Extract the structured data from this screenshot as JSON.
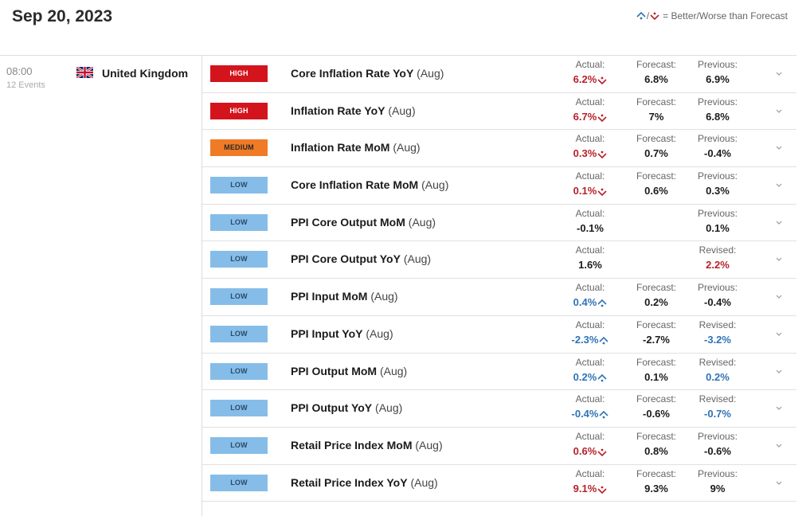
{
  "header": {
    "date": "Sep 20, 2023",
    "legend_sep": "/",
    "legend_text": "= Better/Worse than Forecast",
    "legend_better_icon": "better-arrow-icon",
    "legend_worse_icon": "worse-arrow-icon"
  },
  "colors": {
    "better": "#2f73b6",
    "worse": "#b8212a",
    "high": "#d4141d",
    "medium": "#f07b26",
    "low": "#86bde8"
  },
  "group": {
    "time": "08:00",
    "events_count": "12 Events",
    "country": "United Kingdom",
    "flag_icon": "uk-flag-icon"
  },
  "events": [
    {
      "importance": "HIGH",
      "name": "Core Inflation Rate YoY",
      "period": "(Aug)",
      "actual_label": "Actual:",
      "actual": "6.2%",
      "actual_status": "worse",
      "forecast_label": "Forecast:",
      "forecast": "6.8%",
      "previous_label": "Previous:",
      "previous": "6.9%",
      "previous_status": "neutral"
    },
    {
      "importance": "HIGH",
      "name": "Inflation Rate YoY",
      "period": "(Aug)",
      "actual_label": "Actual:",
      "actual": "6.7%",
      "actual_status": "worse",
      "forecast_label": "Forecast:",
      "forecast": "7%",
      "previous_label": "Previous:",
      "previous": "6.8%",
      "previous_status": "neutral"
    },
    {
      "importance": "MEDIUM",
      "name": "Inflation Rate MoM",
      "period": "(Aug)",
      "actual_label": "Actual:",
      "actual": "0.3%",
      "actual_status": "worse",
      "forecast_label": "Forecast:",
      "forecast": "0.7%",
      "previous_label": "Previous:",
      "previous": "-0.4%",
      "previous_status": "neutral"
    },
    {
      "importance": "LOW",
      "name": "Core Inflation Rate MoM",
      "period": "(Aug)",
      "actual_label": "Actual:",
      "actual": "0.1%",
      "actual_status": "worse",
      "forecast_label": "Forecast:",
      "forecast": "0.6%",
      "previous_label": "Previous:",
      "previous": "0.3%",
      "previous_status": "neutral"
    },
    {
      "importance": "LOW",
      "name": "PPI Core Output MoM",
      "period": "(Aug)",
      "actual_label": "Actual:",
      "actual": "-0.1%",
      "actual_status": "neutral",
      "forecast_label": "",
      "forecast": "",
      "previous_label": "Previous:",
      "previous": "0.1%",
      "previous_status": "neutral"
    },
    {
      "importance": "LOW",
      "name": "PPI Core Output YoY",
      "period": "(Aug)",
      "actual_label": "Actual:",
      "actual": "1.6%",
      "actual_status": "neutral",
      "forecast_label": "",
      "forecast": "",
      "previous_label": "Revised:",
      "previous": "2.2%",
      "previous_status": "worse"
    },
    {
      "importance": "LOW",
      "name": "PPI Input MoM",
      "period": "(Aug)",
      "actual_label": "Actual:",
      "actual": "0.4%",
      "actual_status": "better",
      "forecast_label": "Forecast:",
      "forecast": "0.2%",
      "previous_label": "Previous:",
      "previous": "-0.4%",
      "previous_status": "neutral"
    },
    {
      "importance": "LOW",
      "name": "PPI Input YoY",
      "period": "(Aug)",
      "actual_label": "Actual:",
      "actual": "-2.3%",
      "actual_status": "better",
      "forecast_label": "Forecast:",
      "forecast": "-2.7%",
      "previous_label": "Revised:",
      "previous": "-3.2%",
      "previous_status": "better"
    },
    {
      "importance": "LOW",
      "name": "PPI Output MoM",
      "period": "(Aug)",
      "actual_label": "Actual:",
      "actual": "0.2%",
      "actual_status": "better",
      "forecast_label": "Forecast:",
      "forecast": "0.1%",
      "previous_label": "Revised:",
      "previous": "0.2%",
      "previous_status": "better"
    },
    {
      "importance": "LOW",
      "name": "PPI Output YoY",
      "period": "(Aug)",
      "actual_label": "Actual:",
      "actual": "-0.4%",
      "actual_status": "better",
      "forecast_label": "Forecast:",
      "forecast": "-0.6%",
      "previous_label": "Revised:",
      "previous": "-0.7%",
      "previous_status": "better"
    },
    {
      "importance": "LOW",
      "name": "Retail Price Index MoM",
      "period": "(Aug)",
      "actual_label": "Actual:",
      "actual": "0.6%",
      "actual_status": "worse",
      "forecast_label": "Forecast:",
      "forecast": "0.8%",
      "previous_label": "Previous:",
      "previous": "-0.6%",
      "previous_status": "neutral"
    },
    {
      "importance": "LOW",
      "name": "Retail Price Index YoY",
      "period": "(Aug)",
      "actual_label": "Actual:",
      "actual": "9.1%",
      "actual_status": "worse",
      "forecast_label": "Forecast:",
      "forecast": "9.3%",
      "previous_label": "Previous:",
      "previous": "9%",
      "previous_status": "neutral"
    }
  ]
}
